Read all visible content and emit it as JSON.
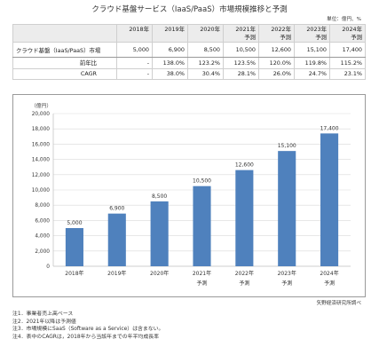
{
  "title": "クラウド基盤サービス（IaaS/PaaS）市場規模推移と予測",
  "unit_label": "単位：億円、%",
  "table": {
    "columns": [
      {
        "year": "2018年",
        "sub": ""
      },
      {
        "year": "2019年",
        "sub": ""
      },
      {
        "year": "2020年",
        "sub": ""
      },
      {
        "year": "2021年",
        "sub": "予測"
      },
      {
        "year": "2022年",
        "sub": "予測"
      },
      {
        "year": "2023年",
        "sub": "予測"
      },
      {
        "year": "2024年",
        "sub": "予測"
      }
    ],
    "rows": [
      {
        "label": "クラウド基盤（IaaS/PaaS）市場",
        "values": [
          "5,000",
          "6,900",
          "8,500",
          "10,500",
          "12,600",
          "15,100",
          "17,400"
        ]
      },
      {
        "label": "前年比",
        "values": [
          "-",
          "138.0%",
          "123.2%",
          "123.5%",
          "120.0%",
          "119.8%",
          "115.2%"
        ]
      },
      {
        "label": "CAGR",
        "values": [
          "-",
          "38.0%",
          "30.4%",
          "28.1%",
          "26.0%",
          "24.7%",
          "23.1%"
        ]
      }
    ]
  },
  "chart_data": {
    "type": "bar",
    "categories": [
      "2018年",
      "2019年",
      "2020年",
      "2021年",
      "2022年",
      "2023年",
      "2024年"
    ],
    "category_sub": [
      "",
      "",
      "",
      "予測",
      "予測",
      "予測",
      "予測"
    ],
    "values": [
      5000,
      6900,
      8500,
      10500,
      12600,
      15100,
      17400
    ],
    "value_labels": [
      "5,000",
      "6,900",
      "8,500",
      "10,500",
      "12,600",
      "15,100",
      "17,400"
    ],
    "ylabel": "（億円）",
    "ylim": [
      0,
      20000
    ],
    "yticks": [
      0,
      2000,
      4000,
      6000,
      8000,
      10000,
      12000,
      14000,
      16000,
      18000,
      20000
    ],
    "ytick_labels": [
      "0",
      "2,000",
      "4,000",
      "6,000",
      "8,000",
      "10,000",
      "12,000",
      "14,000",
      "16,000",
      "18,000",
      "20,000"
    ],
    "bar_color": "#4f81bd",
    "grid": true,
    "legend": "none"
  },
  "source": "矢野経済研究所調べ",
  "notes": [
    "注1．事業者売上高ベース",
    "注2．2021年以降は予測値",
    "注3．市場規模にSaaS（Software as a Service）は含まない。",
    "注4．表中のCAGRは，2018年から当該年までの年平均成長率"
  ]
}
